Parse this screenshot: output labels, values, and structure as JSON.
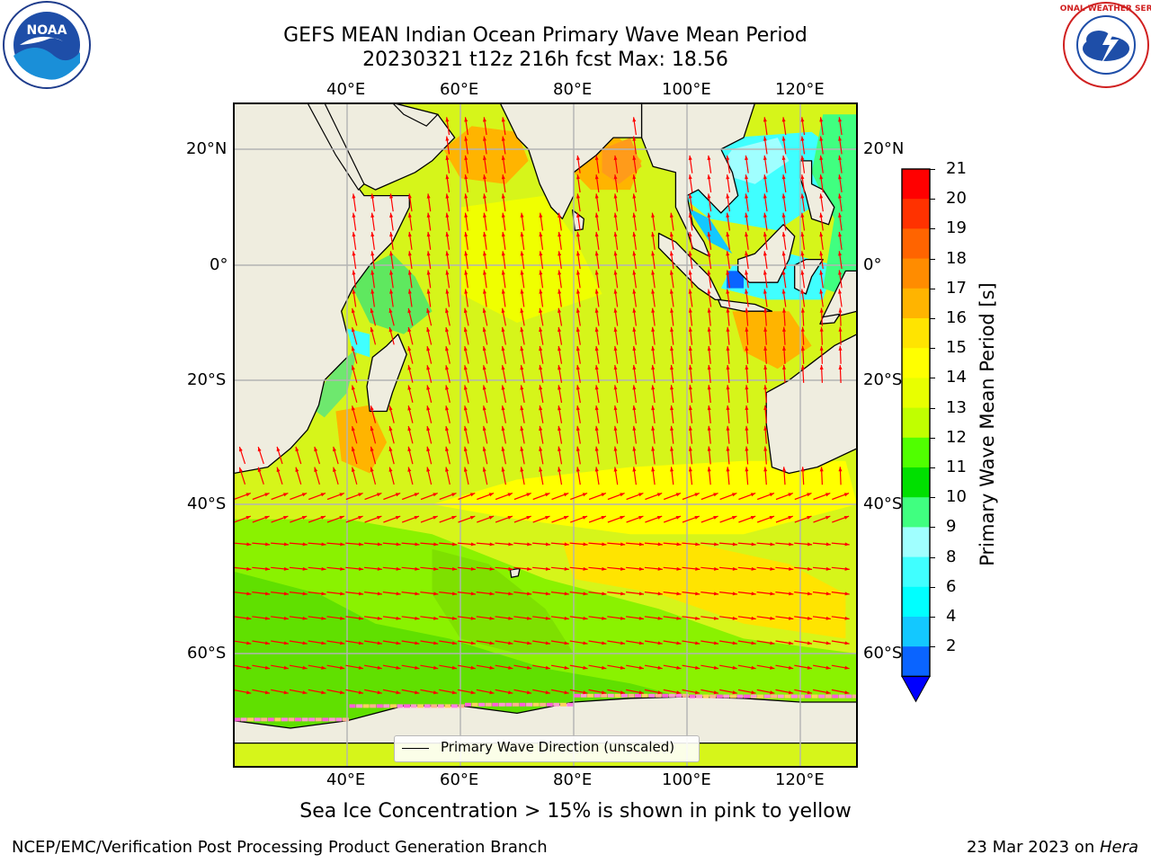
{
  "title": {
    "line1": "GEFS MEAN Indian Ocean Primary Wave Mean Period",
    "line2": "20230321 t12z 216h fcst   Max: 18.56"
  },
  "map": {
    "lon_ticks": [
      "40°E",
      "60°E",
      "80°E",
      "100°E",
      "120°E"
    ],
    "lat_ticks": [
      "20°N",
      "0°",
      "20°S",
      "40°S",
      "60°S"
    ],
    "lon_range": [
      20,
      130
    ],
    "lat_range": [
      -72,
      27
    ],
    "legend_label": "Primary Wave Direction (unscaled)",
    "land_color": "#efeddf",
    "arrow_color": "#ff0000"
  },
  "colorbar": {
    "label": "Primary Wave Mean Period [s]",
    "ticks": [
      "2",
      "4",
      "6",
      "8",
      "9",
      "10",
      "11",
      "12",
      "13",
      "14",
      "15",
      "16",
      "17",
      "18",
      "19",
      "20",
      "21"
    ],
    "colors": [
      "#0a64ff",
      "#13c8ff",
      "#00ffff",
      "#40ffff",
      "#a0ffff",
      "#40ff80",
      "#00e000",
      "#50ff00",
      "#c0ff00",
      "#e8ff00",
      "#ffff00",
      "#ffe400",
      "#ffb400",
      "#ff8c00",
      "#ff6400",
      "#ff3200",
      "#ff0000"
    ],
    "under_color": "#0000ff"
  },
  "note": "Sea Ice Concentration > 15% is shown in pink to yellow",
  "footer": {
    "left": "NCEP/EMC/Verification Post Processing Product Generation Branch",
    "right_date": "23 Mar 2023 on ",
    "right_host": "Hera"
  },
  "logos": {
    "noaa_text": "NOAA",
    "nws_text": "NATIONAL WEATHER SERVICE"
  }
}
